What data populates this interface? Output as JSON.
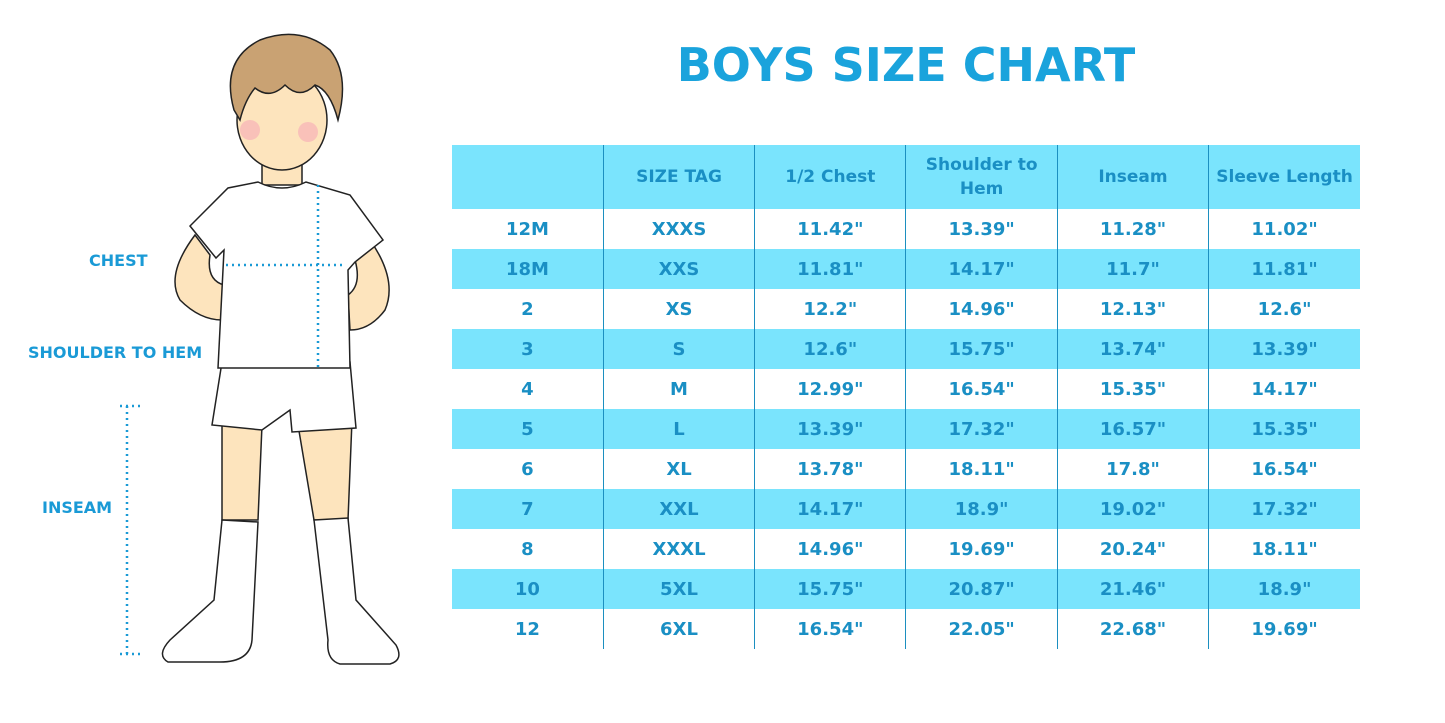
{
  "title": "BOYS SIZE CHART",
  "measurement_labels": {
    "chest": "CHEST",
    "shoulder_to_hem": "SHOULDER TO HEM",
    "inseam": "INSEAM"
  },
  "colors": {
    "accent": "#1aa3dc",
    "row_highlight": "#7ae4fd",
    "text": "#1a8fc4"
  },
  "table": {
    "headers": [
      "",
      "SIZE TAG",
      "1/2 Chest",
      "Shoulder to Hem",
      "Inseam",
      "Sleeve Length"
    ],
    "rows": [
      [
        "12M",
        "XXXS",
        "11.42\"",
        "13.39\"",
        "11.28\"",
        "11.02\""
      ],
      [
        "18M",
        "XXS",
        "11.81\"",
        "14.17\"",
        "11.7\"",
        "11.81\""
      ],
      [
        "2",
        "XS",
        "12.2\"",
        "14.96\"",
        "12.13\"",
        "12.6\""
      ],
      [
        "3",
        "S",
        "12.6\"",
        "15.75\"",
        "13.74\"",
        "13.39\""
      ],
      [
        "4",
        "M",
        "12.99\"",
        "16.54\"",
        "15.35\"",
        "14.17\""
      ],
      [
        "5",
        "L",
        "13.39\"",
        "17.32\"",
        "16.57\"",
        "15.35\""
      ],
      [
        "6",
        "XL",
        "13.78\"",
        "18.11\"",
        "17.8\"",
        "16.54\""
      ],
      [
        "7",
        "XXL",
        "14.17\"",
        "18.9\"",
        "19.02\"",
        "17.32\""
      ],
      [
        "8",
        "XXXL",
        "14.96\"",
        "19.69\"",
        "20.24\"",
        "18.11\""
      ],
      [
        "10",
        "5XL",
        "15.75\"",
        "20.87\"",
        "21.46\"",
        "18.9\""
      ],
      [
        "12",
        "6XL",
        "16.54\"",
        "22.05\"",
        "22.68\"",
        "19.69\""
      ]
    ]
  }
}
